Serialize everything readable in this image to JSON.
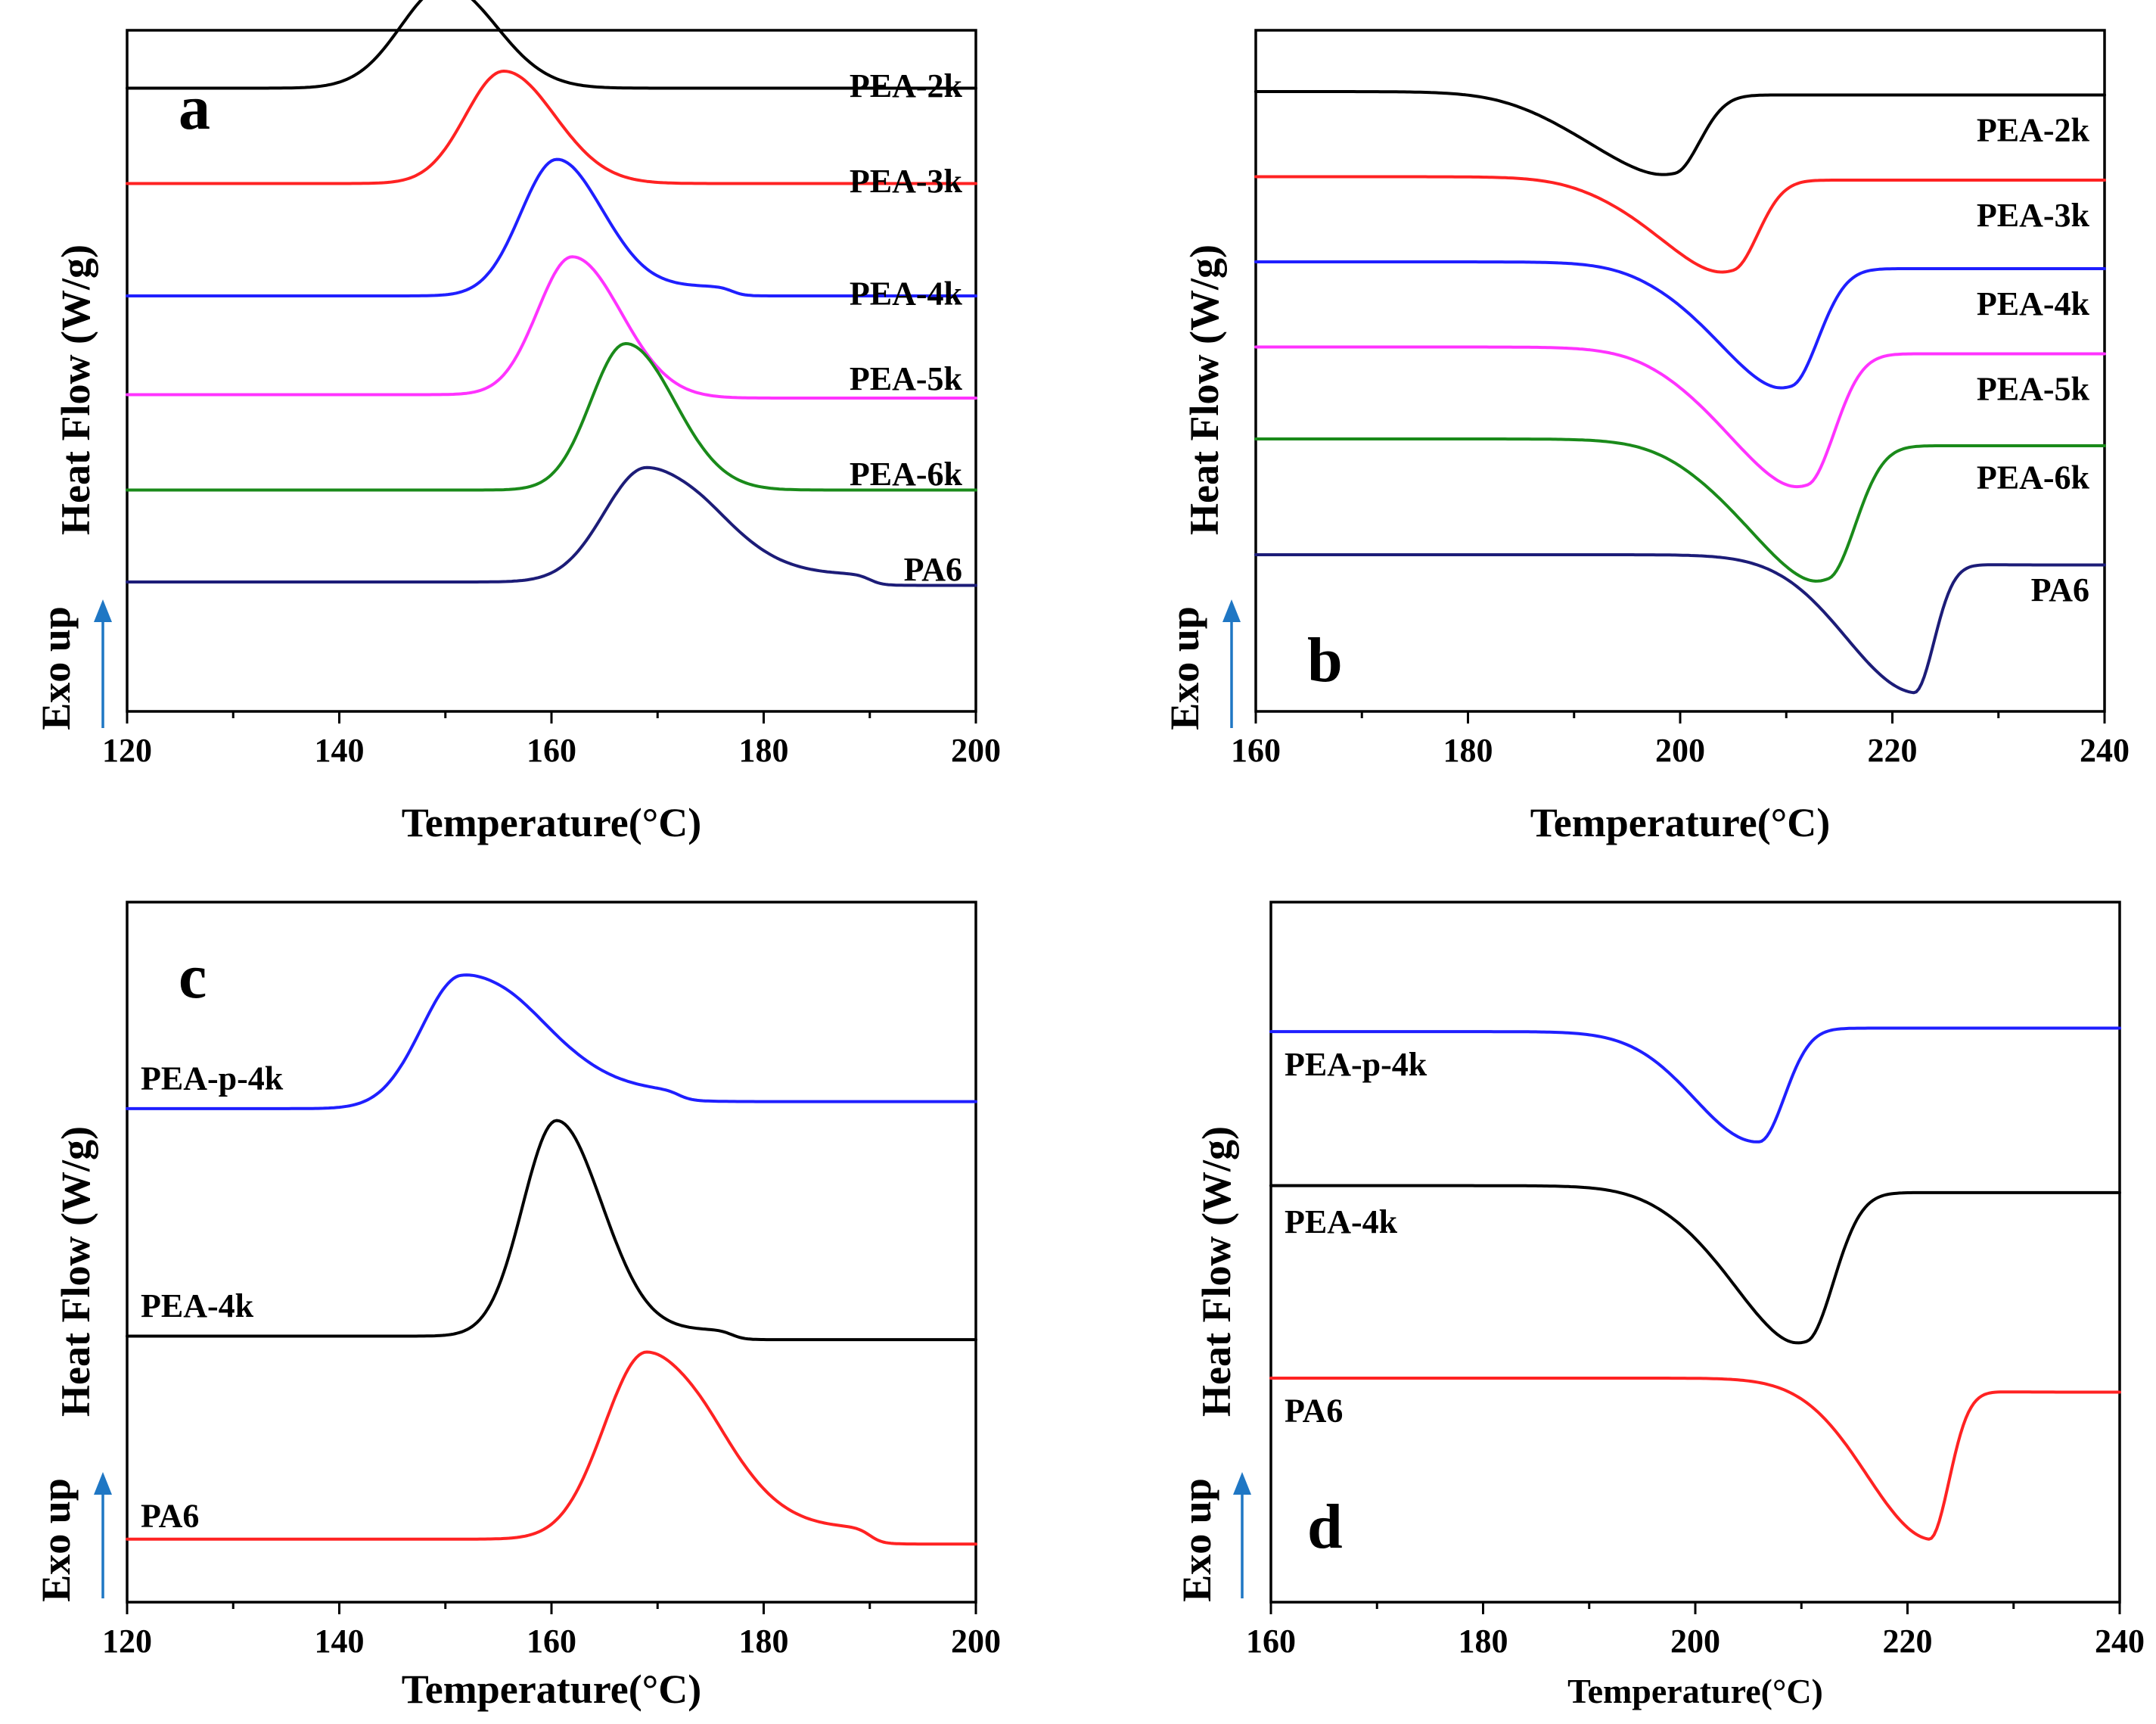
{
  "exo_label": "Exo up",
  "colors": {
    "arrow": "#1f77c4"
  },
  "chart_data": [
    {
      "id": "a",
      "type": "line",
      "panel_label": "a",
      "xlabel": "Temperature(°C)",
      "ylabel": "Heat Flow (W/g)",
      "xlim": [
        120,
        200
      ],
      "xticks": [
        120,
        140,
        160,
        180,
        200
      ],
      "xtick_labels": [
        "120",
        "140",
        "160",
        "180",
        "200"
      ],
      "grid": false,
      "y_units": "stacked offset",
      "ylim": [
        0,
        100
      ],
      "series": [
        {
          "name": "PEA-2k",
          "color": "#000000",
          "baseline": 91.5,
          "peak_height": 15,
          "peak_x": 150,
          "left_sigma": 4.2,
          "right_sigma": 4.8,
          "tail": 0,
          "tail_x": 0,
          "y_end": 91.5,
          "label_y": 92
        },
        {
          "name": "PEA-3k",
          "color": "#ff2222",
          "baseline": 77.5,
          "peak_height": 16.5,
          "peak_x": 155.5,
          "left_sigma": 3.6,
          "right_sigma": 4.8,
          "tail": 0,
          "tail_x": 0,
          "y_end": 77.5,
          "label_y": 78
        },
        {
          "name": "PEA-4k",
          "color": "#1f1fff",
          "baseline": 61,
          "peak_height": 20,
          "peak_x": 160.5,
          "left_sigma": 3.4,
          "right_sigma": 4.2,
          "tail": 1.4,
          "tail_x": 177,
          "y_end": 61,
          "label_y": 61.5
        },
        {
          "name": "PEA-5k",
          "color": "#ff33ff",
          "baseline": 46.5,
          "peak_height": 20.5,
          "peak_x": 162,
          "left_sigma": 3.3,
          "right_sigma": 4.6,
          "tail": 0,
          "tail_x": 0,
          "y_end": 46,
          "label_y": 49
        },
        {
          "name": "PEA-6k",
          "color": "#1a8a1a",
          "baseline": 32.5,
          "peak_height": 21.5,
          "peak_x": 167,
          "left_sigma": 3.3,
          "right_sigma": 4.6,
          "tail": 0,
          "tail_x": 0,
          "y_end": 32.5,
          "label_y": 35
        },
        {
          "name": "PA6",
          "color": "#1c1c78",
          "baseline": 19,
          "peak_height": 17,
          "peak_x": 169,
          "left_sigma": 4,
          "right_sigma": 6.2,
          "tail": 1.6,
          "tail_x": 190,
          "y_end": 18.5,
          "label_y": 21
        }
      ]
    },
    {
      "id": "b",
      "type": "line",
      "panel_label": "b",
      "xlabel": "Temperature(°C)",
      "ylabel": "Heat Flow (W/g)",
      "xlim": [
        160,
        240
      ],
      "xticks": [
        160,
        180,
        200,
        220,
        240
      ],
      "xtick_labels": [
        "160",
        "180",
        "200",
        "220",
        "240"
      ],
      "grid": false,
      "y_units": "stacked offset",
      "ylim": [
        0,
        100
      ],
      "series": [
        {
          "name": "PEA-2k",
          "color": "#000000",
          "start": 91,
          "end": 90.5,
          "depth": 11,
          "peak_x": 199.5,
          "left_sigma": 7.5,
          "right_sigma": 2.4,
          "shoulder": 1.5,
          "label_y": 85.5
        },
        {
          "name": "PEA-3k",
          "color": "#ff2222",
          "start": 78.5,
          "end": 78,
          "depth": 12.5,
          "peak_x": 205,
          "left_sigma": 6.5,
          "right_sigma": 2.4,
          "shoulder": 2,
          "label_y": 73
        },
        {
          "name": "PEA-4k",
          "color": "#1f1fff",
          "start": 66,
          "end": 65,
          "depth": 16.5,
          "peak_x": 210.5,
          "left_sigma": 6.5,
          "right_sigma": 2.6,
          "shoulder": 2.5,
          "label_y": 60
        },
        {
          "name": "PEA-5k",
          "color": "#ff33ff",
          "start": 53.5,
          "end": 52.5,
          "depth": 18.5,
          "peak_x": 212,
          "left_sigma": 7,
          "right_sigma": 2.6,
          "shoulder": 2.5,
          "label_y": 47.5
        },
        {
          "name": "PEA-6k",
          "color": "#1a8a1a",
          "start": 40,
          "end": 39,
          "depth": 18.5,
          "peak_x": 214,
          "left_sigma": 7,
          "right_sigma": 2.6,
          "shoulder": 3,
          "label_y": 34.5
        },
        {
          "name": "PA6",
          "color": "#1c1c78",
          "start": 23,
          "end": 21.5,
          "depth": 19.5,
          "peak_x": 222,
          "left_sigma": 6.5,
          "right_sigma": 1.9,
          "shoulder": 0,
          "label_y": 18
        }
      ]
    },
    {
      "id": "c",
      "type": "line",
      "panel_label": "c",
      "xlabel": "Temperature(°C)",
      "ylabel": "Heat Flow (W/g)",
      "xlim": [
        120,
        200
      ],
      "xticks": [
        120,
        140,
        160,
        180,
        200
      ],
      "xtick_labels": [
        "120",
        "140",
        "160",
        "180",
        "200"
      ],
      "grid": false,
      "y_units": "stacked offset",
      "ylim": [
        0,
        100
      ],
      "series": [
        {
          "name": "PEA-p-4k",
          "color": "#1f1fff",
          "baseline": 70.5,
          "peak_height": 18.5,
          "peak_x": 151.5,
          "left_sigma": 3.8,
          "right_sigma": 7,
          "tail": 1.4,
          "tail_x": 172,
          "y_end": 71.5,
          "label_y": 75
        },
        {
          "name": "PEA-4k",
          "color": "#000000",
          "baseline": 38,
          "peak_height": 31,
          "peak_x": 160.5,
          "left_sigma": 3.2,
          "right_sigma": 4.2,
          "tail": 1.4,
          "tail_x": 177,
          "y_end": 37.5,
          "label_y": 42.5
        },
        {
          "name": "PA6",
          "color": "#ff2222",
          "baseline": 9,
          "peak_height": 27,
          "peak_x": 169,
          "left_sigma": 4,
          "right_sigma": 6.2,
          "tail": 2.3,
          "tail_x": 190,
          "y_end": 8.3,
          "label_y": 12.5
        }
      ]
    },
    {
      "id": "d",
      "type": "line",
      "panel_label": "d",
      "xlabel": "Temperature(°C)",
      "ylabel": "Heat Flow (W/g)",
      "xlim": [
        160,
        240
      ],
      "xticks": [
        160,
        180,
        200,
        220,
        240
      ],
      "xtick_labels": [
        "160",
        "180",
        "200",
        "220",
        "240"
      ],
      "grid": false,
      "y_units": "stacked offset",
      "ylim": [
        0,
        100
      ],
      "series": [
        {
          "name": "PEA-p-4k",
          "color": "#1f1fff",
          "start": 81.5,
          "end": 82,
          "depth": 16,
          "peak_x": 206,
          "left_sigma": 6,
          "right_sigma": 2.4,
          "shoulder": 0,
          "label_y": 77
        },
        {
          "name": "PEA-4k",
          "color": "#000000",
          "start": 59.5,
          "end": 58.5,
          "depth": 20.5,
          "peak_x": 210.5,
          "left_sigma": 6.5,
          "right_sigma": 2.6,
          "shoulder": 2.5,
          "label_y": 54.5
        },
        {
          "name": "PA6",
          "color": "#ff2222",
          "start": 32,
          "end": 30,
          "depth": 22,
          "peak_x": 222,
          "left_sigma": 6,
          "right_sigma": 1.9,
          "shoulder": 0,
          "label_y": 27.5
        }
      ]
    }
  ]
}
